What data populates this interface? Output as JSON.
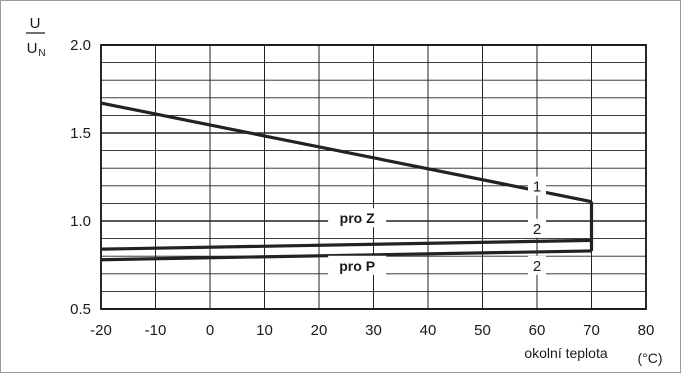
{
  "chart_data": {
    "type": "line",
    "ylabel_num": "U",
    "ylabel_den": "U",
    "ylabel_den_sub": "N",
    "xlabel": "okolní teplota",
    "xunit": "(°C)",
    "xlim": [
      -20,
      80
    ],
    "ylim": [
      0.5,
      2.0
    ],
    "x_ticks": [
      "-20",
      "-10",
      "0",
      "10",
      "20",
      "30",
      "40",
      "50",
      "60",
      "70",
      "80"
    ],
    "y_ticks": [
      "0.5",
      "1.0",
      "1.5",
      "2.0"
    ],
    "grid": true,
    "series": [
      {
        "name": "1",
        "x": [
          -20,
          70
        ],
        "y": [
          1.67,
          1.11
        ]
      },
      {
        "name": "2",
        "x": [
          -20,
          70
        ],
        "y": [
          0.84,
          0.89
        ]
      },
      {
        "name": "2",
        "x": [
          -20,
          70
        ],
        "y": [
          0.78,
          0.83
        ]
      }
    ],
    "connector": {
      "x": 70,
      "y": [
        0.83,
        1.11
      ]
    },
    "annotations": [
      {
        "text": "1",
        "x": 60,
        "y": 1.19
      },
      {
        "text": "2",
        "x": 60,
        "y": 0.95
      },
      {
        "text": "2",
        "x": 60,
        "y": 0.74
      },
      {
        "text": "pro Z",
        "x": 27,
        "y": 1.01
      },
      {
        "text": "pro P",
        "x": 27,
        "y": 0.74
      }
    ]
  }
}
